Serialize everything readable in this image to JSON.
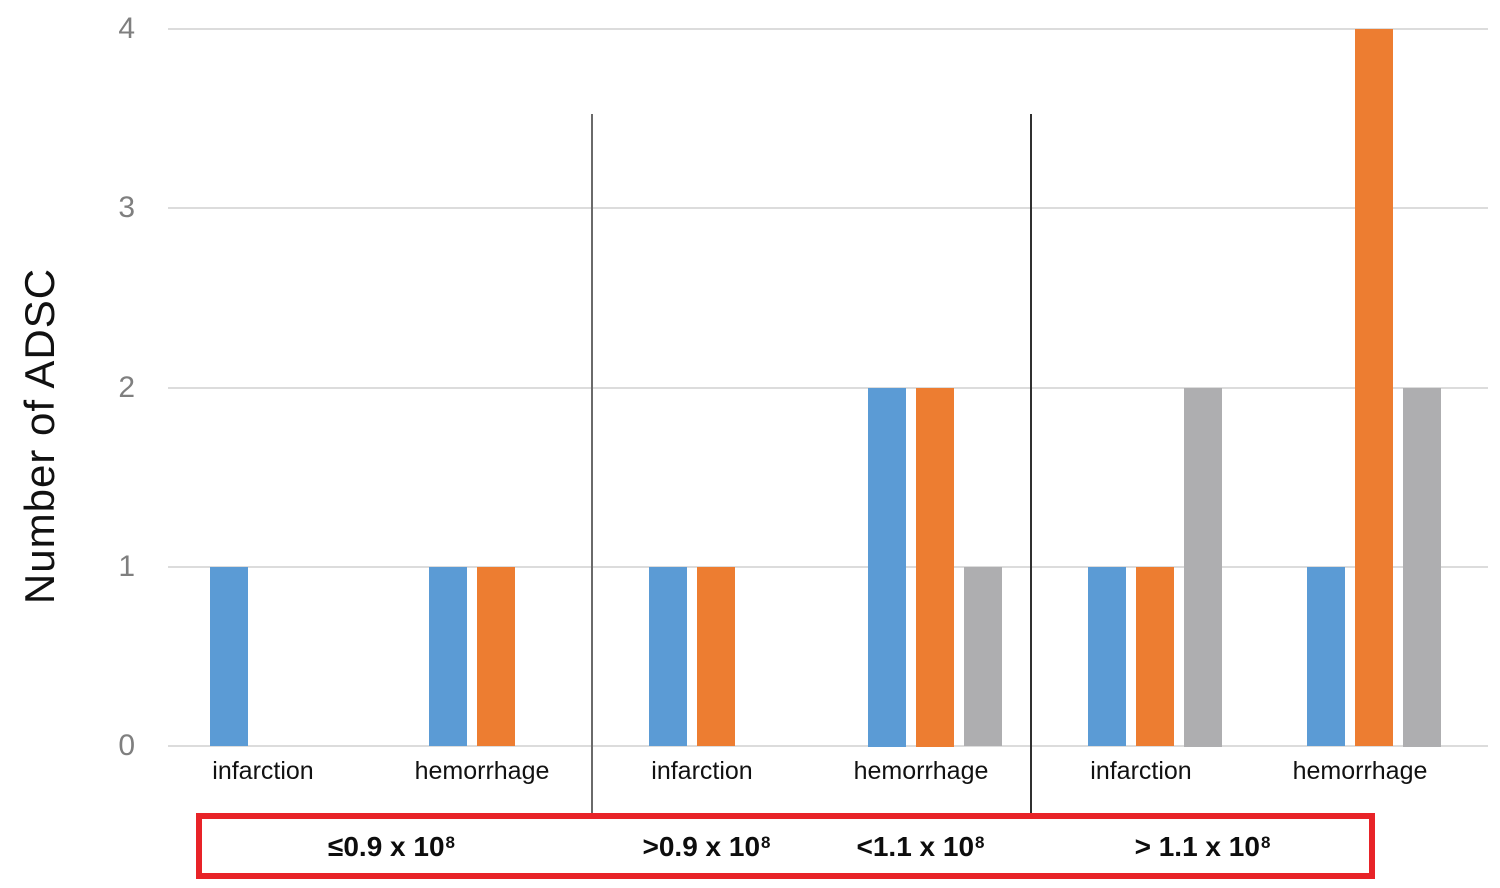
{
  "chart_data": {
    "type": "bar",
    "title": "",
    "ylabel": "Number of ADSC",
    "xlabel": "",
    "ylim": [
      0,
      4
    ],
    "yticks": [
      0,
      1,
      2,
      3,
      4
    ],
    "grid": true,
    "legend": "none",
    "categories": [
      "infarction",
      "hemorrhage",
      "infarction",
      "hemorrhage",
      "infarction",
      "hemorrhage"
    ],
    "series": [
      {
        "name": "series-blue",
        "color": "#5B9BD5",
        "values": [
          1,
          1,
          1,
          2,
          1,
          1
        ]
      },
      {
        "name": "series-orange",
        "color": "#ED7D31",
        "values": [
          0,
          1,
          1,
          2,
          1,
          4
        ]
      },
      {
        "name": "series-gray",
        "color": "#AEAEB0",
        "values": [
          0,
          0,
          0,
          1,
          2,
          2
        ]
      }
    ],
    "dose_groups": [
      {
        "label_base": "≤0.9 x 10",
        "label_exp": "8",
        "span_categories": [
          0,
          1
        ]
      },
      {
        "label_base": ">0.9 x 10",
        "label_exp": "8",
        "span_categories": [
          2
        ]
      },
      {
        "label_base": "<1.1 x 10",
        "label_exp": "8",
        "span_categories": [
          3
        ]
      },
      {
        "label_base": "> 1.1 x 10",
        "label_exp": "8",
        "span_categories": [
          4,
          5
        ]
      }
    ],
    "colors": {
      "gridline": "#DCDCDC",
      "tick_label": "#7F7F7F",
      "axis_title": "#111111",
      "category_label": "#111111",
      "dividers": [
        "#6A6A6A",
        "#303030"
      ],
      "box_border": "#E82328",
      "box_text": "#0D0D0D"
    }
  }
}
